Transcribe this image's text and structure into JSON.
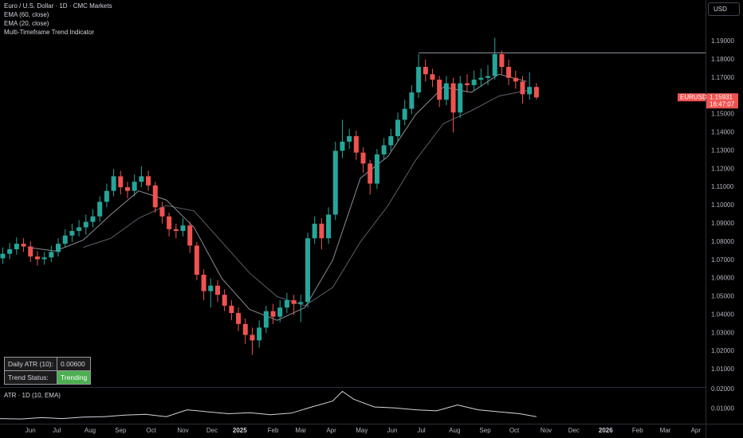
{
  "currency": "USD",
  "indicator_title": "Multi-Timeframe Trend Indicator",
  "table": {
    "rows": [
      [
        "Daily ATR (10):",
        "0.00600"
      ],
      [
        "Trend Status:",
        "Trending"
      ]
    ]
  },
  "chart_data": [
    {
      "type": "candlestick",
      "title": "Euro / U.S. Dollar · 1D · CMC Markets",
      "up_color": "#26a69a",
      "down_color": "#ef5350",
      "x": [
        2,
        7,
        12,
        17,
        22,
        27,
        32,
        37,
        42,
        47,
        52,
        57,
        62,
        67,
        72,
        77,
        82,
        87,
        92,
        97,
        102,
        107,
        112,
        117,
        122,
        127,
        132,
        137,
        142,
        147,
        152,
        157,
        162,
        167,
        172,
        177,
        182,
        187,
        192,
        197,
        202,
        207,
        212,
        217,
        222,
        227,
        232,
        237,
        242,
        247,
        252,
        257,
        262,
        267,
        272,
        277,
        282,
        287,
        292,
        297,
        302,
        307,
        312,
        317,
        322,
        327,
        332,
        337,
        342,
        347,
        352,
        357,
        362,
        367,
        372,
        377,
        382,
        387
      ],
      "open": [
        1.071,
        1.0735,
        1.076,
        1.079,
        1.0775,
        1.072,
        1.0705,
        1.0715,
        1.0745,
        1.079,
        1.0835,
        1.086,
        1.088,
        1.091,
        1.094,
        1.102,
        1.108,
        1.116,
        1.11,
        1.108,
        1.113,
        1.116,
        1.111,
        1.099,
        1.094,
        1.087,
        1.086,
        1.089,
        1.078,
        1.062,
        1.053,
        1.056,
        1.051,
        1.045,
        1.041,
        1.035,
        1.029,
        1.026,
        1.033,
        1.042,
        1.039,
        1.044,
        1.048,
        1.046,
        1.047,
        1.082,
        1.09,
        1.082,
        1.095,
        1.13,
        1.135,
        1.138,
        1.129,
        1.123,
        1.112,
        1.128,
        1.133,
        1.138,
        1.147,
        1.153,
        1.162,
        1.176,
        1.172,
        1.169,
        1.158,
        1.167,
        1.151,
        1.167,
        1.166,
        1.169,
        1.17,
        1.171,
        1.183,
        1.176,
        1.17,
        1.168,
        1.161,
        1.165
      ],
      "high": [
        1.077,
        1.0795,
        1.0825,
        1.082,
        1.0805,
        1.075,
        1.0745,
        1.078,
        1.082,
        1.087,
        1.09,
        1.092,
        1.095,
        1.098,
        1.105,
        1.112,
        1.12,
        1.119,
        1.113,
        1.117,
        1.1215,
        1.119,
        1.113,
        1.102,
        1.096,
        1.09,
        1.093,
        1.091,
        1.08,
        1.065,
        1.06,
        1.059,
        1.054,
        1.048,
        1.044,
        1.038,
        1.033,
        1.037,
        1.045,
        1.046,
        1.048,
        1.052,
        1.051,
        1.051,
        1.085,
        1.094,
        1.093,
        1.099,
        1.135,
        1.147,
        1.142,
        1.141,
        1.132,
        1.125,
        1.131,
        1.137,
        1.142,
        1.151,
        1.158,
        1.166,
        1.183,
        1.18,
        1.175,
        1.171,
        1.171,
        1.17,
        1.171,
        1.172,
        1.174,
        1.175,
        1.177,
        1.192,
        1.185,
        1.18,
        1.174,
        1.171,
        1.173,
        1.167
      ],
      "low": [
        1.068,
        1.0705,
        1.073,
        1.0745,
        1.069,
        1.067,
        1.0675,
        1.069,
        1.072,
        1.077,
        1.08,
        1.083,
        1.084,
        1.088,
        1.091,
        1.099,
        1.105,
        1.106,
        1.104,
        1.105,
        1.11,
        1.108,
        1.096,
        1.09,
        1.083,
        1.082,
        1.083,
        1.074,
        1.059,
        1.048,
        1.044,
        1.047,
        1.042,
        1.037,
        1.031,
        1.024,
        1.018,
        1.022,
        1.03,
        1.035,
        1.036,
        1.041,
        1.04,
        1.036,
        1.044,
        1.079,
        1.076,
        1.079,
        1.092,
        1.126,
        1.131,
        1.125,
        1.118,
        1.106,
        1.109,
        1.125,
        1.13,
        1.135,
        1.144,
        1.15,
        1.159,
        1.168,
        1.165,
        1.154,
        1.155,
        1.14,
        1.148,
        1.162,
        1.163,
        1.165,
        1.166,
        1.169,
        1.172,
        1.166,
        1.164,
        1.156,
        1.158,
        1.158
      ],
      "close": [
        1.0735,
        1.076,
        1.079,
        1.0775,
        1.072,
        1.0705,
        1.0715,
        1.0745,
        1.079,
        1.0835,
        1.086,
        1.088,
        1.091,
        1.094,
        1.102,
        1.108,
        1.116,
        1.11,
        1.108,
        1.113,
        1.116,
        1.111,
        1.099,
        1.094,
        1.087,
        1.086,
        1.089,
        1.078,
        1.062,
        1.053,
        1.056,
        1.051,
        1.045,
        1.041,
        1.035,
        1.029,
        1.026,
        1.033,
        1.042,
        1.039,
        1.044,
        1.048,
        1.046,
        1.047,
        1.082,
        1.09,
        1.082,
        1.095,
        1.13,
        1.135,
        1.138,
        1.129,
        1.123,
        1.112,
        1.128,
        1.133,
        1.138,
        1.147,
        1.153,
        1.162,
        1.176,
        1.172,
        1.169,
        1.158,
        1.167,
        1.151,
        1.167,
        1.166,
        1.169,
        1.17,
        1.171,
        1.183,
        1.176,
        1.17,
        1.168,
        1.161,
        1.165,
        1.1593
      ],
      "lines": [
        {
          "name": "EMA (60, close)",
          "color": "#5d606b",
          "x": [
            60,
            80,
            100,
            120,
            140,
            160,
            180,
            200,
            220,
            240,
            260,
            280,
            300,
            320,
            340,
            360,
            380
          ],
          "values": [
            1.077,
            1.082,
            1.093,
            1.1,
            1.097,
            1.08,
            1.063,
            1.05,
            1.045,
            1.055,
            1.08,
            1.1,
            1.125,
            1.145,
            1.152,
            1.16,
            1.163
          ]
        },
        {
          "name": "EMA (20, close)",
          "color": "#8a8d96",
          "x": [
            20,
            40,
            60,
            80,
            100,
            120,
            140,
            160,
            180,
            200,
            220,
            240,
            260,
            280,
            300,
            320,
            340,
            360,
            380
          ],
          "values": [
            1.077,
            1.075,
            1.081,
            1.095,
            1.108,
            1.103,
            1.088,
            1.06,
            1.043,
            1.037,
            1.044,
            1.07,
            1.115,
            1.127,
            1.15,
            1.165,
            1.162,
            1.172,
            1.168
          ]
        }
      ],
      "hline": {
        "value": 1.1837,
        "x_start": 302
      },
      "last": {
        "symbol": "EURUSD",
        "price": 1.15931,
        "countdown": "16:47:07"
      },
      "xlim": [
        0,
        509
      ],
      "xticks": [
        {
          "value": 22,
          "label": "Jun"
        },
        {
          "value": 41,
          "label": "Jul"
        },
        {
          "value": 65,
          "label": "Aug"
        },
        {
          "value": 87,
          "label": "Sep"
        },
        {
          "value": 109,
          "label": "Oct"
        },
        {
          "value": 132,
          "label": "Nov"
        },
        {
          "value": 153,
          "label": "Dec"
        },
        {
          "value": 173,
          "label": "2025"
        },
        {
          "value": 197,
          "label": "Feb"
        },
        {
          "value": 217,
          "label": "Mar"
        },
        {
          "value": 239,
          "label": "Apr"
        },
        {
          "value": 261,
          "label": "May"
        },
        {
          "value": 283,
          "label": "Jun"
        },
        {
          "value": 304,
          "label": "Jul"
        },
        {
          "value": 328,
          "label": "Aug"
        },
        {
          "value": 350,
          "label": "Sep"
        },
        {
          "value": 371,
          "label": "Oct"
        },
        {
          "value": 394,
          "label": "Nov"
        },
        {
          "value": 414,
          "label": "Dec"
        },
        {
          "value": 437,
          "label": "2026"
        },
        {
          "value": 460,
          "label": "Feb"
        },
        {
          "value": 480,
          "label": "Mar"
        },
        {
          "value": 502,
          "label": "Apr"
        }
      ],
      "ylim": [
        1.0004,
        1.2127
      ],
      "yticks": [
        {
          "value": 1.01,
          "label": "1.01000"
        },
        {
          "value": 1.02,
          "label": "1.02000"
        },
        {
          "value": 1.03,
          "label": "1.03000"
        },
        {
          "value": 1.04,
          "label": "1.04000"
        },
        {
          "value": 1.05,
          "label": "1.05000"
        },
        {
          "value": 1.06,
          "label": "1.06000"
        },
        {
          "value": 1.07,
          "label": "1.07000"
        },
        {
          "value": 1.08,
          "label": "1.08000"
        },
        {
          "value": 1.09,
          "label": "1.09000"
        },
        {
          "value": 1.1,
          "label": "1.10000"
        },
        {
          "value": 1.11,
          "label": "1.11000"
        },
        {
          "value": 1.12,
          "label": "1.12000"
        },
        {
          "value": 1.13,
          "label": "1.13000"
        },
        {
          "value": 1.14,
          "label": "1.14000"
        },
        {
          "value": 1.15,
          "label": "1.15000"
        },
        {
          "value": 1.16,
          "label": "1.16000"
        },
        {
          "value": 1.17,
          "label": "1.17000"
        },
        {
          "value": 1.18,
          "label": "1.18000"
        },
        {
          "value": 1.19,
          "label": "1.19000"
        }
      ]
    },
    {
      "type": "line",
      "title": "ATR · 1D (10, EMA)",
      "color": "#d1d4dc",
      "x": [
        0,
        15,
        30,
        45,
        60,
        75,
        90,
        105,
        120,
        135,
        150,
        165,
        180,
        195,
        210,
        225,
        240,
        247,
        255,
        270,
        285,
        300,
        315,
        330,
        345,
        360,
        375,
        387
      ],
      "values": [
        0.005,
        0.0048,
        0.0055,
        0.005,
        0.0058,
        0.006,
        0.0068,
        0.0072,
        0.006,
        0.0095,
        0.0085,
        0.0075,
        0.008,
        0.007,
        0.0078,
        0.011,
        0.014,
        0.019,
        0.015,
        0.011,
        0.0105,
        0.0095,
        0.009,
        0.012,
        0.0095,
        0.0085,
        0.0075,
        0.006
      ],
      "ylim": [
        0.0024,
        0.0208
      ],
      "yticks": [
        {
          "value": 0.01,
          "label": "0.01000"
        },
        {
          "value": 0.02,
          "label": "0.02000"
        }
      ]
    }
  ]
}
